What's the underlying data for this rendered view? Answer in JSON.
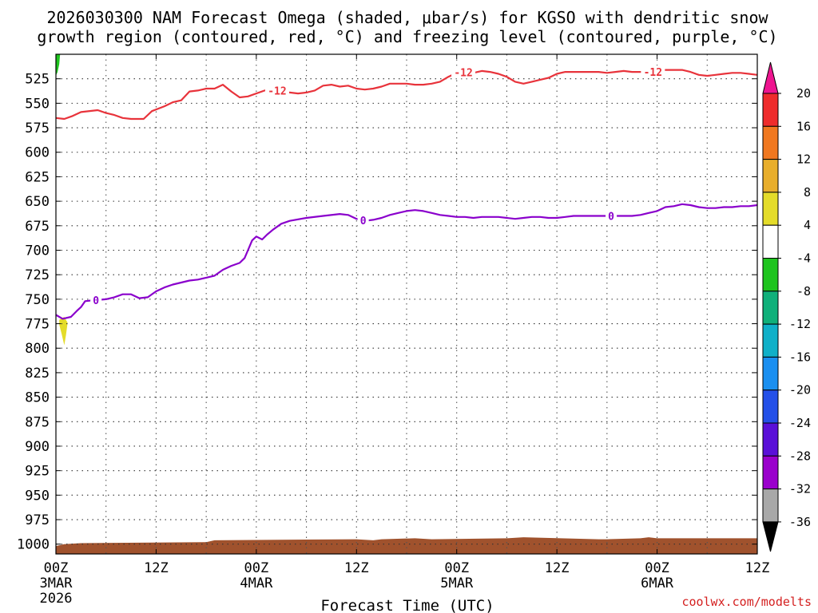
{
  "chart_data": {
    "type": "time-height contour",
    "title_line1": "2026030300 NAM Forecast Omega (shaded, μbar/s) for KGSO with dendritic snow",
    "title_line2": "growth region (contoured, red, °C) and freezing level (contoured, purple, °C)",
    "xlabel": "Forecast Time (UTC)",
    "credit": "coolwx.com/modelts",
    "x_forecast_hours": [
      0,
      84
    ],
    "y_pressure_mb": [
      500,
      1010
    ],
    "y_ticks": [
      525,
      550,
      575,
      600,
      625,
      650,
      675,
      700,
      725,
      750,
      775,
      800,
      825,
      850,
      875,
      900,
      925,
      950,
      975,
      1000
    ],
    "x_ticks": [
      {
        "h": 0,
        "l1": "00Z",
        "l2": "3MAR",
        "l3": "2026"
      },
      {
        "h": 12,
        "l1": "12Z",
        "l2": "",
        "l3": ""
      },
      {
        "h": 24,
        "l1": "00Z",
        "l2": "4MAR",
        "l3": ""
      },
      {
        "h": 36,
        "l1": "12Z",
        "l2": "",
        "l3": ""
      },
      {
        "h": 48,
        "l1": "00Z",
        "l2": "5MAR",
        "l3": ""
      },
      {
        "h": 60,
        "l1": "12Z",
        "l2": "",
        "l3": ""
      },
      {
        "h": 72,
        "l1": "00Z",
        "l2": "6MAR",
        "l3": ""
      },
      {
        "h": 84,
        "l1": "12Z",
        "l2": "",
        "l3": ""
      }
    ],
    "series": [
      {
        "name": "-12 °C isotherm",
        "label": "-12",
        "color": "#e8333b",
        "label_hours": [
          26.5,
          48.8,
          71.5
        ],
        "points": [
          [
            0,
            565
          ],
          [
            1,
            566
          ],
          [
            2,
            563
          ],
          [
            3,
            559
          ],
          [
            5,
            557
          ],
          [
            6,
            560
          ],
          [
            7,
            562
          ],
          [
            8,
            565
          ],
          [
            9,
            566
          ],
          [
            10.5,
            566
          ],
          [
            11.5,
            558
          ],
          [
            13,
            553
          ],
          [
            14,
            549
          ],
          [
            15,
            547
          ],
          [
            16,
            538
          ],
          [
            17,
            537
          ],
          [
            18,
            535
          ],
          [
            19,
            535
          ],
          [
            20,
            531
          ],
          [
            21,
            538
          ],
          [
            22,
            544
          ],
          [
            23,
            543
          ],
          [
            25,
            537
          ],
          [
            26,
            535
          ],
          [
            27,
            539
          ],
          [
            28,
            539
          ],
          [
            29,
            540
          ],
          [
            30,
            539
          ],
          [
            31,
            537
          ],
          [
            32,
            532
          ],
          [
            33,
            531
          ],
          [
            34,
            533
          ],
          [
            35,
            532
          ],
          [
            36,
            535
          ],
          [
            37,
            536
          ],
          [
            38,
            535
          ],
          [
            39,
            533
          ],
          [
            40,
            530
          ],
          [
            42,
            530
          ],
          [
            43,
            531
          ],
          [
            44,
            531
          ],
          [
            45,
            530
          ],
          [
            46,
            528
          ],
          [
            47,
            523
          ],
          [
            48,
            519
          ],
          [
            49,
            518
          ],
          [
            50,
            519
          ],
          [
            51,
            517
          ],
          [
            52,
            518
          ],
          [
            53,
            520
          ],
          [
            54,
            523
          ],
          [
            55,
            528
          ],
          [
            56,
            530
          ],
          [
            57,
            528
          ],
          [
            58,
            526
          ],
          [
            59,
            524
          ],
          [
            60,
            520
          ],
          [
            61,
            518
          ],
          [
            62,
            518
          ],
          [
            63,
            518
          ],
          [
            64,
            518
          ],
          [
            65,
            518
          ],
          [
            66,
            519
          ],
          [
            67,
            518
          ],
          [
            68,
            517
          ],
          [
            69,
            518
          ],
          [
            70,
            518
          ],
          [
            71,
            518
          ],
          [
            72,
            518
          ],
          [
            73,
            516
          ],
          [
            74,
            516
          ],
          [
            75,
            516
          ],
          [
            76,
            518
          ],
          [
            77,
            521
          ],
          [
            78,
            522
          ],
          [
            79,
            521
          ],
          [
            80,
            520
          ],
          [
            81,
            519
          ],
          [
            82,
            519
          ],
          [
            83,
            520
          ],
          [
            84,
            521
          ]
        ]
      },
      {
        "name": "0 °C freezing level",
        "label": "0",
        "color": "#8a00cc",
        "label_hours": [
          4.8,
          36.8,
          66.5
        ],
        "points": [
          [
            0,
            766
          ],
          [
            0.8,
            770
          ],
          [
            1.8,
            768
          ],
          [
            2.5,
            762
          ],
          [
            3,
            758
          ],
          [
            3.5,
            752
          ],
          [
            4.5,
            751
          ],
          [
            6,
            750
          ],
          [
            7,
            748
          ],
          [
            8,
            745
          ],
          [
            9,
            745
          ],
          [
            10,
            749
          ],
          [
            11,
            748
          ],
          [
            12,
            742
          ],
          [
            13,
            738
          ],
          [
            14,
            735
          ],
          [
            15,
            733
          ],
          [
            16,
            731
          ],
          [
            17,
            730
          ],
          [
            18,
            728
          ],
          [
            19,
            726
          ],
          [
            20,
            720
          ],
          [
            21,
            716
          ],
          [
            22,
            713
          ],
          [
            22.6,
            708
          ],
          [
            23,
            700
          ],
          [
            23.5,
            690
          ],
          [
            24,
            686
          ],
          [
            24.7,
            689
          ],
          [
            25.3,
            684
          ],
          [
            26,
            679
          ],
          [
            27,
            673
          ],
          [
            28,
            670
          ],
          [
            30,
            667
          ],
          [
            32,
            665
          ],
          [
            34,
            663
          ],
          [
            35,
            664
          ],
          [
            36,
            668
          ],
          [
            37,
            670
          ],
          [
            38,
            669
          ],
          [
            39,
            667
          ],
          [
            40,
            664
          ],
          [
            41,
            662
          ],
          [
            42,
            660
          ],
          [
            43,
            659
          ],
          [
            44,
            660
          ],
          [
            45,
            662
          ],
          [
            46,
            664
          ],
          [
            47,
            665
          ],
          [
            48,
            666
          ],
          [
            49,
            666
          ],
          [
            50,
            667
          ],
          [
            51,
            666
          ],
          [
            52,
            666
          ],
          [
            53,
            666
          ],
          [
            54,
            667
          ],
          [
            55,
            668
          ],
          [
            56,
            667
          ],
          [
            57,
            666
          ],
          [
            58,
            666
          ],
          [
            59,
            667
          ],
          [
            60,
            667
          ],
          [
            61,
            666
          ],
          [
            62,
            665
          ],
          [
            63,
            665
          ],
          [
            64,
            665
          ],
          [
            65,
            665
          ],
          [
            66,
            665
          ],
          [
            67,
            665
          ],
          [
            68,
            665
          ],
          [
            69,
            665
          ],
          [
            70,
            664
          ],
          [
            71,
            662
          ],
          [
            72,
            660
          ],
          [
            73,
            656
          ],
          [
            74,
            655
          ],
          [
            75,
            653
          ],
          [
            76,
            654
          ],
          [
            77,
            656
          ],
          [
            78,
            657
          ],
          [
            79,
            657
          ],
          [
            80,
            656
          ],
          [
            81,
            656
          ],
          [
            82,
            655
          ],
          [
            83,
            655
          ],
          [
            84,
            654
          ]
        ]
      }
    ],
    "omega_patches": [
      {
        "name": "omega-green-patch",
        "color": "#1ec41e",
        "value_range": "-8 to -4",
        "points": [
          [
            0,
            500
          ],
          [
            0.5,
            500
          ],
          [
            0.4,
            510
          ],
          [
            0.2,
            518
          ],
          [
            0,
            522
          ]
        ]
      },
      {
        "name": "omega-yellow-patch",
        "color": "#e4dc2a",
        "value_range": "4 to 8",
        "points": [
          [
            0.4,
            771
          ],
          [
            1.0,
            768
          ],
          [
            1.4,
            774
          ],
          [
            1.2,
            787
          ],
          [
            1.0,
            797
          ],
          [
            0.7,
            786
          ],
          [
            0.4,
            776
          ]
        ]
      }
    ],
    "terrain": {
      "color": "#a0522d",
      "points": [
        [
          0,
          1002
        ],
        [
          1,
          1000
        ],
        [
          3,
          999
        ],
        [
          18,
          998
        ],
        [
          19,
          996
        ],
        [
          36,
          995
        ],
        [
          38,
          996
        ],
        [
          39,
          995
        ],
        [
          43,
          994
        ],
        [
          45,
          995
        ],
        [
          54,
          994
        ],
        [
          56,
          993
        ],
        [
          65,
          995
        ],
        [
          66,
          995
        ],
        [
          70,
          994
        ],
        [
          71,
          993
        ],
        [
          72,
          994
        ],
        [
          84,
          994
        ]
      ]
    },
    "colorbar": {
      "top_color": "#ee1590",
      "bottom_color": "#000000",
      "bands": [
        {
          "color": "#ee2c2c"
        },
        {
          "color": "#f07820"
        },
        {
          "color": "#e8ae2c"
        },
        {
          "color": "#e4dc2a"
        },
        {
          "color": "#ffffff"
        },
        {
          "color": "#1ec41e"
        },
        {
          "color": "#10b07a"
        },
        {
          "color": "#10b0c8"
        },
        {
          "color": "#1a8ff0"
        },
        {
          "color": "#2450e8"
        },
        {
          "color": "#5a10d8"
        },
        {
          "color": "#9a00cc"
        },
        {
          "color": "#a8a8a8"
        }
      ],
      "labels": [
        "20",
        "16",
        "12",
        "8",
        "4",
        "-4",
        "-8",
        "-12",
        "-16",
        "-20",
        "-24",
        "-28",
        "-32",
        "-36"
      ]
    }
  }
}
